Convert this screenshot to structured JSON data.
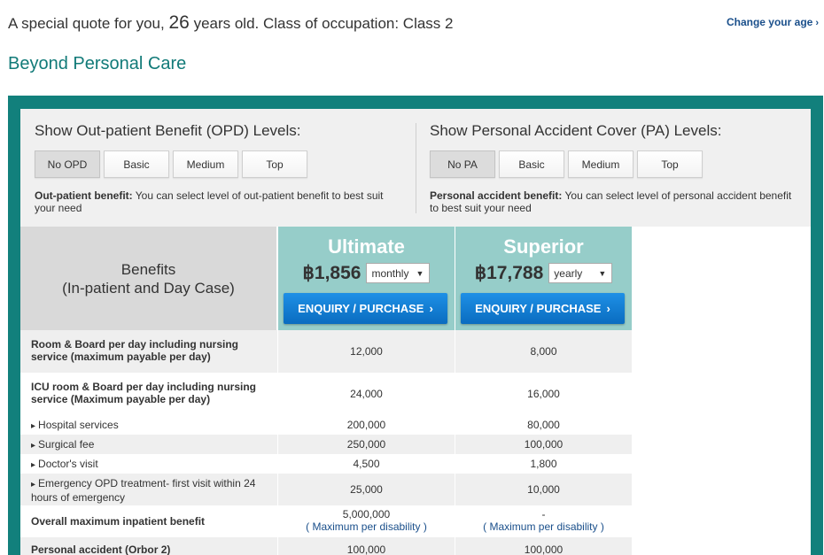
{
  "header": {
    "quote_prefix": "A special quote for you,",
    "age": "26",
    "quote_suffix": "years old. Class of occupation: Class 2",
    "change_age": "Change your age",
    "plan_title": "Beyond Personal Care"
  },
  "opd": {
    "title": "Show Out-patient Benefit (OPD) Levels:",
    "buttons": [
      "No OPD",
      "Basic",
      "Medium",
      "Top"
    ],
    "desc_bold": "Out-patient benefit:",
    "desc": "You can select level of out-patient benefit to best suit your need"
  },
  "pa": {
    "title": "Show Personal Accident Cover (PA) Levels:",
    "buttons": [
      "No PA",
      "Basic",
      "Medium",
      "Top"
    ],
    "desc_bold": "Personal accident benefit:",
    "desc": "You can select level of personal accident benefit to best suit your need"
  },
  "benefits_header": {
    "line1": "Benefits",
    "line2": "(In-patient and Day Case)"
  },
  "plans": [
    {
      "name": "Ultimate",
      "price": "฿1,856",
      "frequency": "monthly",
      "cta": "ENQUIRY / PURCHASE"
    },
    {
      "name": "Superior",
      "price": "฿17,788",
      "frequency": "yearly",
      "cta": "ENQUIRY / PURCHASE"
    }
  ],
  "rows": [
    {
      "label": "Room & Board per day including nursing service (maximum payable per day)",
      "ultimate": "12,000",
      "superior": "8,000"
    },
    {
      "label": "ICU room & Board per day including nursing service (Maximum payable per day)",
      "ultimate": "24,000",
      "superior": "16,000"
    },
    {
      "label": "Hospital services",
      "ultimate": "200,000",
      "superior": "80,000"
    },
    {
      "label": "Surgical fee",
      "ultimate": "250,000",
      "superior": "100,000"
    },
    {
      "label": "Doctor's visit",
      "ultimate": "4,500",
      "superior": "1,800"
    },
    {
      "label": "Emergency OPD treatment- first visit within 24 hours of emergency",
      "ultimate": "25,000",
      "superior": "10,000"
    },
    {
      "label": "Overall maximum inpatient benefit",
      "ultimate": "5,000,000",
      "superior": "-",
      "ultimate_link": "( Maximum per disability )",
      "superior_link": "( Maximum per disability )"
    },
    {
      "label": "Personal accident (Orbor 2)",
      "ultimate": "100,000",
      "superior": "100,000"
    }
  ],
  "colors": {
    "teal_frame": "#12807c",
    "plan_header": "#96cdc9",
    "cta_blue": "#0a6cc0",
    "link_blue": "#1a4f8b"
  }
}
